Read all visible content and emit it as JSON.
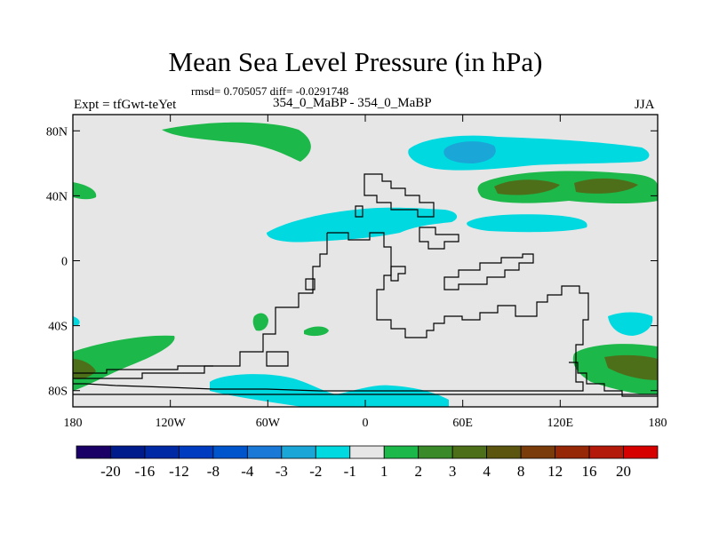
{
  "header": {
    "title": "Mean Sea Level Pressure (in hPa)",
    "stats": "rmsd= 0.705057 diff= -0.0291748",
    "experiment": "Expt = tfGwt-teYet",
    "comparison": "354_0_MaBP - 354_0_MaBP",
    "season": "JJA"
  },
  "axes": {
    "lat_ticks": [
      {
        "lat": 80,
        "label": "80N"
      },
      {
        "lat": 40,
        "label": "40N"
      },
      {
        "lat": 0,
        "label": "0"
      },
      {
        "lat": -40,
        "label": "40S"
      },
      {
        "lat": -80,
        "label": "80S"
      }
    ],
    "lon_ticks": [
      {
        "lon": -180,
        "label": "180"
      },
      {
        "lon": -120,
        "label": "120W"
      },
      {
        "lon": -60,
        "label": "60W"
      },
      {
        "lon": 0,
        "label": "0"
      },
      {
        "lon": 60,
        "label": "60E"
      },
      {
        "lon": 120,
        "label": "120E"
      },
      {
        "lon": 180,
        "label": "180"
      }
    ]
  },
  "colorbar": {
    "colors": [
      "#1a0066",
      "#001c8c",
      "#0029a6",
      "#003cbf",
      "#0055cc",
      "#1a78d6",
      "#1aa6d6",
      "#00d9e0",
      "#e6e6e6",
      "#1db84a",
      "#3a8a2a",
      "#4e6f1a",
      "#5c5510",
      "#7a3c0a",
      "#962808",
      "#b31a0a",
      "#d60000"
    ],
    "labels": [
      "-20",
      "-16",
      "-12",
      "-8",
      "-4",
      "-3",
      "-2",
      "-1",
      "1",
      "2",
      "3",
      "4",
      "8",
      "12",
      "16",
      "20"
    ]
  },
  "colors": {
    "background": "#e6e6e6",
    "cyan": "#00d9e0",
    "blue": "#1aa6d6",
    "green": "#1db84a",
    "dark_green": "#3a8a2a",
    "olive": "#5c5510",
    "coast": "#000000"
  }
}
